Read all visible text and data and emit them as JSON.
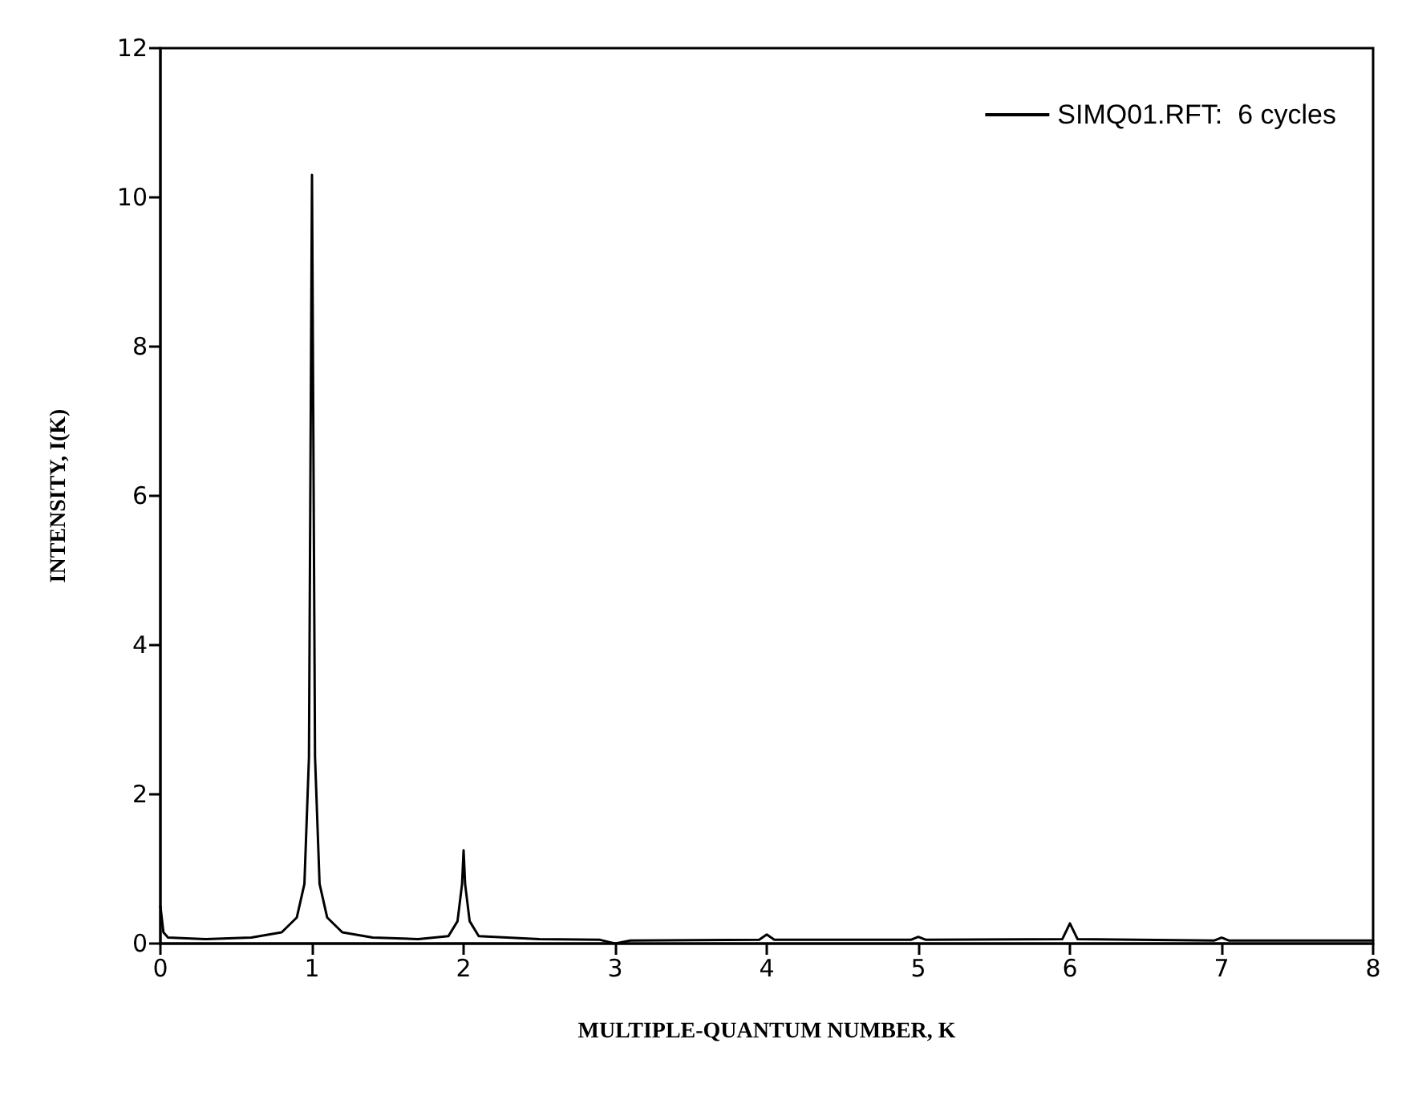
{
  "chart_data": {
    "type": "line",
    "xlabel": "MULTIPLE-QUANTUM NUMBER, K",
    "ylabel": "INTENSITY, I(K)",
    "xlim": [
      0,
      8
    ],
    "ylim": [
      0,
      12
    ],
    "xticks": [
      0,
      1,
      2,
      3,
      4,
      5,
      6,
      7,
      8
    ],
    "yticks": [
      0,
      2,
      4,
      6,
      8,
      10,
      12
    ],
    "grid": false,
    "legend": "top right",
    "marker": "none",
    "line_style": "solid",
    "series": [
      {
        "name": "SIMQ01.RFT:  6 cycles",
        "color": "#000000",
        "x": [
          0,
          0.02,
          0.05,
          0.3,
          0.6,
          0.8,
          0.9,
          0.95,
          0.98,
          1.0,
          1.02,
          1.05,
          1.1,
          1.2,
          1.4,
          1.7,
          1.9,
          1.96,
          1.99,
          2.0,
          2.01,
          2.04,
          2.1,
          2.5,
          2.9,
          3.0,
          3.1,
          3.95,
          4.0,
          4.05,
          4.95,
          5.0,
          5.05,
          5.95,
          6.0,
          6.05,
          6.95,
          7.0,
          7.05,
          8
        ],
        "values": [
          0.5,
          0.15,
          0.08,
          0.06,
          0.08,
          0.15,
          0.35,
          0.8,
          2.5,
          10.3,
          2.5,
          0.8,
          0.35,
          0.15,
          0.08,
          0.06,
          0.1,
          0.3,
          0.8,
          1.25,
          0.8,
          0.3,
          0.1,
          0.06,
          0.05,
          0.0,
          0.04,
          0.05,
          0.12,
          0.05,
          0.05,
          0.09,
          0.05,
          0.06,
          0.27,
          0.06,
          0.04,
          0.08,
          0.04,
          0.04
        ]
      }
    ]
  }
}
